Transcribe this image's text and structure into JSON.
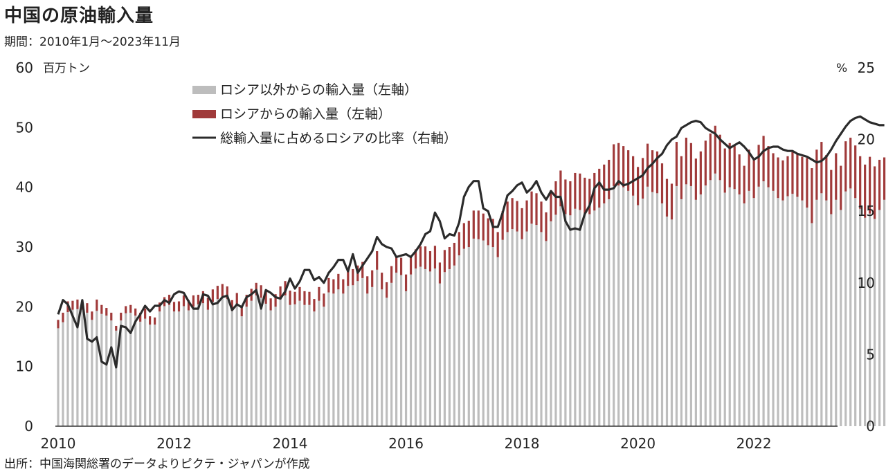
{
  "header": {
    "title": "中国の原油輸入量",
    "subtitle": "期間：2010年1月～2023年11月"
  },
  "footer": {
    "source": "出所：中国海関総署のデータよりピクテ・ジャパンが作成"
  },
  "chart_data": {
    "type": "bar",
    "stacked": true,
    "left_unit": "百万トン",
    "right_unit": "%",
    "ylim_left": [
      0,
      60
    ],
    "ylim_right": [
      0,
      25
    ],
    "yticks_left": [
      "0",
      "10",
      "20",
      "30",
      "40",
      "50",
      "60"
    ],
    "yticks_right": [
      "0",
      "5",
      "10",
      "15",
      "20",
      "25"
    ],
    "xticks": [
      "2010",
      "2012",
      "2014",
      "2016",
      "2018",
      "2020",
      "2022"
    ],
    "x_start": "2010-01",
    "x_end": "2023-11",
    "legend_position": "top-left",
    "colors": {
      "other": "#bdbdbd",
      "russia": "#a03a3a",
      "ratio": "#2b2b2b"
    },
    "series": [
      {
        "name": "ロシア以外からの輸入量（左軸）",
        "kind": "bar",
        "values": [
          16.4,
          17.4,
          19.1,
          19.5,
          19.6,
          19.5,
          19.0,
          17.8,
          19.3,
          18.8,
          18.5,
          17.7,
          16.0,
          17.7,
          18.9,
          19.0,
          18.5,
          17.5,
          18.0,
          17.0,
          17.0,
          19.2,
          20.1,
          20.3,
          19.2,
          19.2,
          20.1,
          19.4,
          20.0,
          20.4,
          20.6,
          19.5,
          20.8,
          21.3,
          21.6,
          21.3,
          19.3,
          20.3,
          18.4,
          20.0,
          21.0,
          21.9,
          21.5,
          20.5,
          19.4,
          20.0,
          21.2,
          21.9,
          20.3,
          20.4,
          21.0,
          20.3,
          20.3,
          19.2,
          21.0,
          20.0,
          22.4,
          22.2,
          22.9,
          22.2,
          23.5,
          23.6,
          24.3,
          24.8,
          22.2,
          23.3,
          26.2,
          22.9,
          21.5,
          24.0,
          25.7,
          25.3,
          22.6,
          25.4,
          26.4,
          26.7,
          26.3,
          25.9,
          26.4,
          23.9,
          25.8,
          26.3,
          26.9,
          28.6,
          29.7,
          30.0,
          31.4,
          31.3,
          31.1,
          30.3,
          30.0,
          28.3,
          31.2,
          32.5,
          33.0,
          32.6,
          31.3,
          32.6,
          33.9,
          33.7,
          32.5,
          31.0,
          34.3,
          35.4,
          36.8,
          35.5,
          35.3,
          36.4,
          36.2,
          35.6,
          35.5,
          36.1,
          36.6,
          37.3,
          38.0,
          40.2,
          40.3,
          40.0,
          39.4,
          38.6,
          37.0,
          38.1,
          40.1,
          39.2,
          39.0,
          37.3,
          35.1,
          34.6,
          40.2,
          38.0,
          40.5,
          40.2,
          37.9,
          38.8,
          40.3,
          41.2,
          42.3,
          41.2,
          39.1,
          40.0,
          39.7,
          38.8,
          37.3,
          39.4,
          38.2,
          40.1,
          41.0,
          40.0,
          39.4,
          38.2,
          37.8,
          38.5,
          38.9,
          38.4,
          37.8,
          36.6,
          34.0,
          37.9,
          39.0,
          37.8,
          35.5,
          37.9,
          36.2,
          39.3,
          39.8,
          38.2,
          36.4,
          34.9,
          35.6,
          34.7,
          36.2,
          37.9
        ],
        "note": "approximate values read from chart; final months truncated by render range"
      },
      {
        "name": "ロシアからの輸入量（左軸）",
        "kind": "bar",
        "values": [
          1.4,
          1.6,
          1.8,
          1.5,
          1.6,
          1.5,
          1.6,
          1.4,
          1.9,
          1.5,
          1.3,
          1.3,
          0.8,
          1.3,
          1.2,
          1.3,
          1.2,
          1.5,
          1.7,
          1.4,
          1.2,
          1.5,
          1.5,
          1.7,
          1.6,
          1.7,
          1.8,
          1.7,
          1.9,
          1.6,
          2.0,
          2.0,
          2.1,
          2.2,
          2.2,
          2.1,
          1.8,
          2.0,
          1.7,
          2.0,
          2.0,
          2.1,
          2.1,
          2.3,
          2.0,
          2.1,
          2.2,
          2.4,
          2.4,
          2.1,
          2.3,
          2.3,
          2.2,
          2.1,
          2.3,
          2.2,
          2.4,
          2.4,
          2.6,
          2.4,
          2.5,
          2.7,
          2.6,
          2.7,
          2.9,
          2.8,
          3.1,
          2.8,
          2.6,
          2.8,
          2.8,
          2.9,
          2.8,
          3.0,
          3.2,
          3.4,
          3.8,
          3.4,
          3.8,
          3.5,
          3.7,
          3.7,
          3.8,
          3.9,
          4.3,
          4.4,
          4.7,
          4.8,
          4.5,
          4.5,
          4.7,
          4.2,
          4.8,
          5.1,
          5.2,
          5.1,
          5.2,
          5.2,
          5.4,
          5.3,
          5.1,
          4.8,
          5.2,
          5.6,
          6.0,
          5.8,
          5.7,
          6.0,
          6.1,
          6.0,
          5.9,
          6.3,
          6.5,
          6.5,
          6.6,
          7.0,
          7.1,
          6.9,
          6.8,
          6.6,
          6.4,
          6.8,
          7.2,
          7.0,
          7.0,
          6.7,
          6.3,
          6.0,
          7.4,
          7.2,
          7.8,
          7.2,
          6.9,
          7.2,
          7.5,
          7.8,
          8.0,
          7.6,
          7.4,
          7.4,
          7.2,
          6.7,
          6.3,
          6.9,
          6.6,
          7.0,
          7.6,
          6.9,
          6.3,
          6.8,
          6.7,
          6.7,
          7.0,
          7.2,
          7.3,
          8.3,
          9.2,
          8.4,
          8.6,
          7.6,
          7.4,
          7.8,
          7.4,
          8.4,
          8.5,
          8.8,
          8.8,
          8.9,
          9.5,
          8.8,
          8.4,
          7.1
        ],
        "note": "approximate values read from chart"
      },
      {
        "name": "総輸入量に占めるロシアの比率（右軸）",
        "kind": "line",
        "axis": "right",
        "values": [
          7.8,
          8.8,
          8.5,
          7.7,
          6.9,
          8.8,
          6.1,
          5.9,
          6.2,
          4.5,
          4.3,
          5.5,
          4.1,
          7.0,
          6.9,
          6.5,
          7.3,
          7.8,
          8.4,
          8.0,
          8.4,
          8.4,
          8.8,
          8.6,
          9.2,
          9.4,
          9.3,
          8.7,
          8.2,
          8.2,
          9.2,
          9.1,
          8.5,
          8.6,
          9.0,
          9.1,
          8.1,
          8.5,
          8.3,
          9.0,
          9.2,
          9.5,
          8.2,
          9.5,
          9.3,
          9.0,
          8.9,
          9.4,
          10.3,
          9.6,
          10.1,
          10.9,
          10.9,
          10.2,
          10.4,
          10.0,
          10.7,
          11.1,
          11.6,
          11.6,
          10.8,
          12.0,
          10.7,
          11.2,
          11.7,
          12.2,
          13.2,
          12.7,
          12.5,
          12.4,
          11.8,
          11.9,
          12.0,
          11.8,
          12.2,
          12.7,
          13.4,
          13.6,
          14.9,
          14.3,
          13.1,
          13.4,
          13.3,
          14.2,
          16.0,
          16.7,
          17.1,
          17.1,
          15.2,
          15.0,
          13.9,
          13.9,
          14.9,
          16.1,
          16.4,
          16.8,
          17.0,
          16.3,
          16.6,
          17.1,
          16.3,
          15.8,
          16.4,
          16.0,
          16.0,
          14.3,
          13.7,
          13.8,
          13.7,
          14.8,
          15.4,
          16.6,
          17.0,
          16.5,
          16.5,
          16.6,
          17.1,
          16.8,
          16.9,
          17.1,
          17.3,
          17.5,
          18.0,
          18.3,
          18.7,
          19.0,
          19.6,
          20.0,
          20.2,
          20.8,
          21.0,
          21.2,
          21.3,
          21.2,
          20.8,
          20.6,
          20.4,
          20.0,
          19.7,
          19.4,
          19.6,
          19.8,
          19.5,
          19.1,
          18.6,
          18.8,
          19.2,
          19.4,
          19.5,
          19.5,
          19.3,
          19.2,
          19.2,
          19.0,
          18.9,
          18.8,
          18.6,
          18.4,
          18.5,
          18.8,
          19.3,
          19.9,
          20.4,
          20.9,
          21.3,
          21.5,
          21.6,
          21.4,
          21.2,
          21.1,
          21.0,
          21.0
        ],
        "note": "approximate values read from chart"
      }
    ]
  }
}
